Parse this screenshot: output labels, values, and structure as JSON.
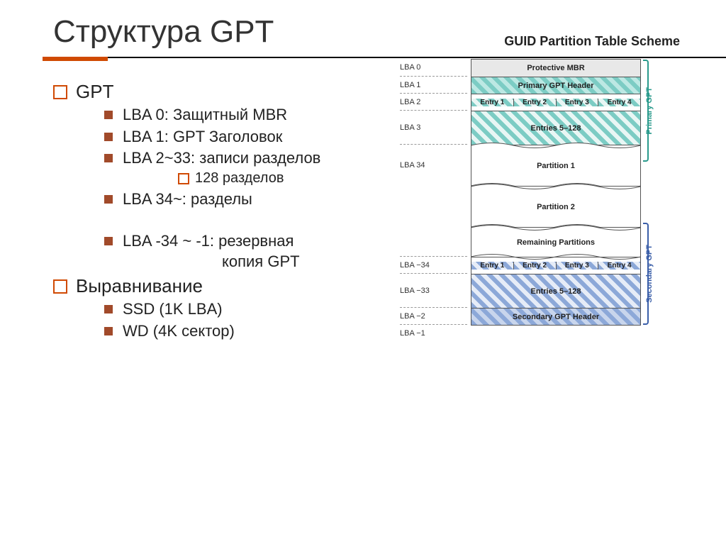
{
  "title": "Структура GPT",
  "scheme_title": "GUID Partition Table Scheme",
  "colors": {
    "accent": "#d04a02",
    "bullet_square": "#a14a2a",
    "teal": "#7cccc4",
    "teal_light": "#e8f6f4",
    "blue": "#8ca8d8",
    "blue_light": "#e6ecf7",
    "primary_bracket": "#2a9a8c",
    "secondary_bracket": "#3a5ea8",
    "text": "#222222"
  },
  "outline": {
    "items": [
      {
        "label": "GPT",
        "children": [
          {
            "label": "LBA 0: Защитный MBR"
          },
          {
            "label": "LBA 1: GPT Заголовок"
          },
          {
            "label": "LBA 2~33: записи разделов",
            "children": [
              {
                "label": "128 разделов"
              }
            ]
          },
          {
            "label": "LBA 34~: разделы"
          },
          {
            "spacer": true
          },
          {
            "label": "LBA -34 ~ -1: резервная",
            "cont": "копия GPT"
          }
        ]
      },
      {
        "label": "Выравнивание",
        "children": [
          {
            "label": "SSD (1K LBA)"
          },
          {
            "label": "WD (4K сектор)"
          }
        ]
      }
    ]
  },
  "diagram": {
    "lba_labels": [
      "LBA 0",
      "LBA 1",
      "LBA 2",
      "LBA 3",
      "",
      "LBA 34",
      "",
      "",
      "",
      "",
      "LBA −34",
      "LBA −33",
      "",
      "LBA −2",
      "LBA −1"
    ],
    "rows": [
      {
        "type": "header-mbr",
        "text": "Protective MBR"
      },
      {
        "type": "primary-hdr",
        "text": "Primary GPT Header"
      },
      {
        "type": "entries4-teal",
        "cells": [
          "Entry 1",
          "Entry 2",
          "Entry 3",
          "Entry 4"
        ]
      },
      {
        "type": "entries128-teal",
        "text": "Entries 5–128"
      },
      {
        "type": "part",
        "text": "Partition 1",
        "cut_top": true,
        "cut_bot": true
      },
      {
        "type": "part",
        "text": "Partition 2",
        "cut_top": true,
        "cut_bot": true
      },
      {
        "type": "remaining",
        "text": "Remaining Partitions",
        "cut_top": true,
        "cut_bot": true
      },
      {
        "type": "entries4-blue",
        "cells": [
          "Entry 1",
          "Entry 2",
          "Entry 3",
          "Entry 4"
        ]
      },
      {
        "type": "entries128-blue",
        "text": "Entries 5–128"
      },
      {
        "type": "secondary-hdr",
        "text": "Secondary GPT Header"
      }
    ],
    "brackets": {
      "primary": "Primary GPT",
      "secondary": "Secondary GPT"
    }
  }
}
